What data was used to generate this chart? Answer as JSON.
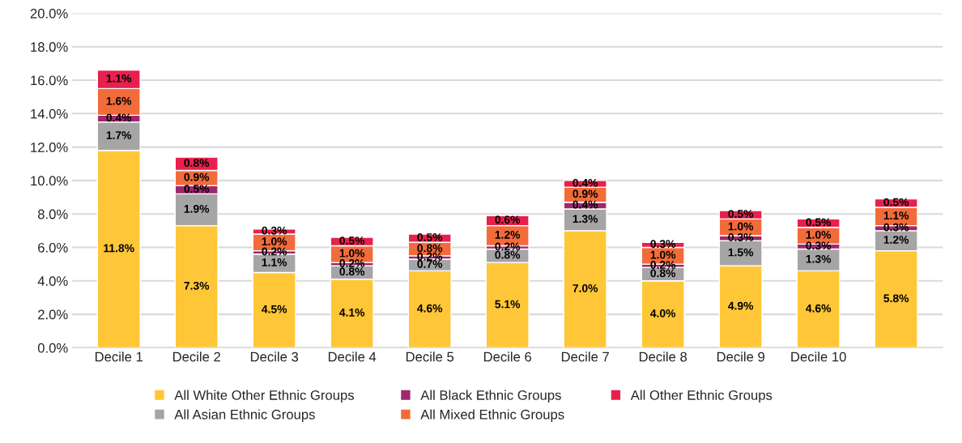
{
  "chart_data": {
    "type": "bar",
    "stacked": true,
    "categories": [
      "Decile 1",
      "Decile 2",
      "Decile 3",
      "Decile 4",
      "Decile 5",
      "Decile 6",
      "Decile 7",
      "Decile 8",
      "Decile 9",
      "Decile 10",
      null
    ],
    "series": [
      {
        "name": "All White Other Ethnic Groups",
        "color": "#ffc637",
        "values": [
          11.8,
          7.3,
          4.5,
          4.1,
          4.6,
          5.1,
          7.0,
          4.0,
          4.9,
          4.6,
          5.8
        ],
        "value_labels": [
          "11.8%",
          "7.3%",
          "4.5%",
          "4.1%",
          "4.6%",
          "5.1%",
          "7.0%",
          "4.0%",
          "4.9%",
          "4.6%",
          "5.8%"
        ]
      },
      {
        "name": "All Asian Ethnic Groups",
        "color": "#a5a5a5",
        "values": [
          1.7,
          1.9,
          1.1,
          0.8,
          0.7,
          0.8,
          1.3,
          0.8,
          1.5,
          1.3,
          1.2
        ],
        "value_labels": [
          "1.7%",
          "1.9%",
          "1.1%",
          "0.8%",
          "0.7%",
          "0.8%",
          "1.3%",
          "0.8%",
          "1.5%",
          "1.3%",
          "1.2%"
        ]
      },
      {
        "name": "All Black Ethnic Groups",
        "color": "#a0286e",
        "values": [
          0.4,
          0.5,
          0.2,
          0.2,
          0.2,
          0.2,
          0.4,
          0.2,
          0.3,
          0.3,
          0.3
        ],
        "value_labels": [
          "0.4%",
          "0.5%",
          "0.2%",
          "0.2%",
          "0.2%",
          "0.2%",
          "0.4%",
          "0.2%",
          "0.3%",
          "0.3%",
          "0.3%"
        ]
      },
      {
        "name": "All Mixed Ethnic Groups",
        "color": "#f26b3a",
        "values": [
          1.6,
          0.9,
          1.0,
          1.0,
          0.8,
          1.2,
          0.9,
          1.0,
          1.0,
          1.0,
          1.1
        ],
        "value_labels": [
          "1.6%",
          "0.9%",
          "1.0%",
          "1.0%",
          "0.8%",
          "1.2%",
          "0.9%",
          "1.0%",
          "1.0%",
          "1.0%",
          "1.1%"
        ]
      },
      {
        "name": "All Other Ethnic Groups",
        "color": "#e8204d",
        "values": [
          1.1,
          0.8,
          0.3,
          0.5,
          0.5,
          0.6,
          0.4,
          0.3,
          0.5,
          0.5,
          0.5
        ],
        "value_labels": [
          "1.1%",
          "0.8%",
          "0.3%",
          "0.5%",
          "0.5%",
          "0.6%",
          "0.4%",
          "0.3%",
          "0.5%",
          "0.5%",
          "0.5%"
        ]
      }
    ],
    "ylim": [
      0,
      20
    ],
    "yticks": [
      {
        "value": 0,
        "label": "0.0%"
      },
      {
        "value": 2,
        "label": "2.0%"
      },
      {
        "value": 4,
        "label": "4.0%"
      },
      {
        "value": 6,
        "label": "6.0%"
      },
      {
        "value": 8,
        "label": "8.0%"
      },
      {
        "value": 10,
        "label": "10.0%"
      },
      {
        "value": 12,
        "label": "12.0%"
      },
      {
        "value": 14,
        "label": "14.0%"
      },
      {
        "value": 16,
        "label": "16.0%"
      },
      {
        "value": 18,
        "label": "18.0%"
      },
      {
        "value": 20,
        "label": "20.0%"
      }
    ],
    "grid": "y",
    "legend": "bottom"
  }
}
